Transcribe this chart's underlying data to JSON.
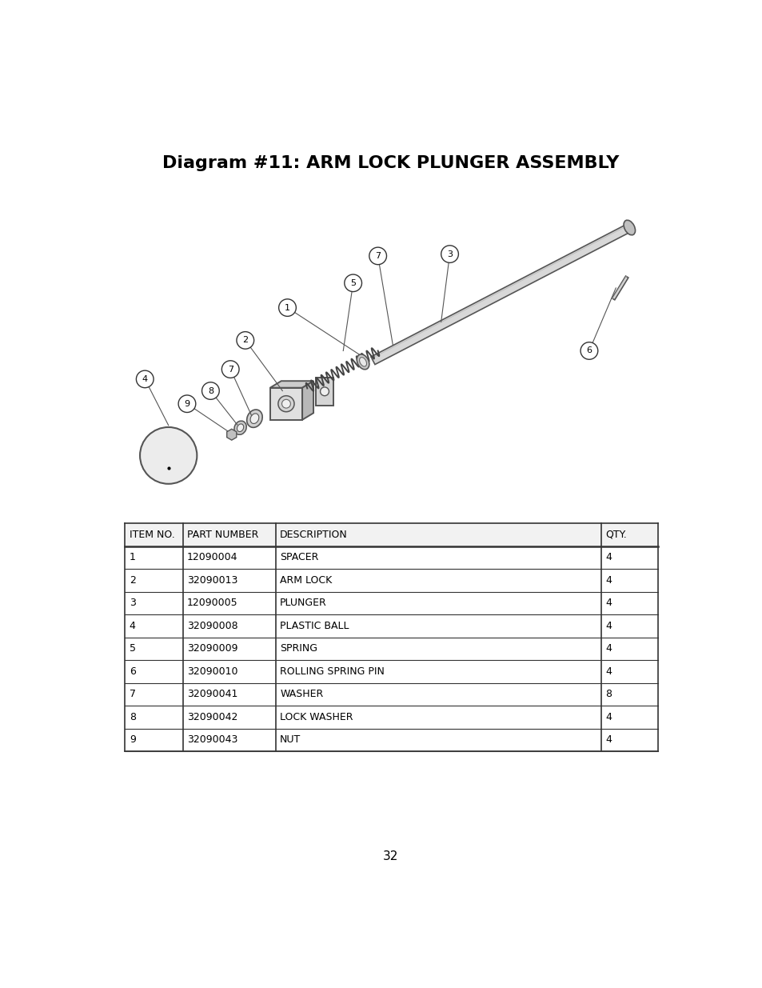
{
  "title": "Diagram #11: ARM LOCK PLUNGER ASSEMBLY",
  "title_fontsize": 16,
  "page_number": "32",
  "background_color": "#ffffff",
  "table_headers": [
    "ITEM NO.",
    "PART NUMBER",
    "DESCRIPTION",
    "QTY."
  ],
  "table_rows": [
    [
      "1",
      "12090004",
      "SPACER",
      "4"
    ],
    [
      "2",
      "32090013",
      "ARM LOCK",
      "4"
    ],
    [
      "3",
      "12090005",
      "PLUNGER",
      "4"
    ],
    [
      "4",
      "32090008",
      "PLASTIC BALL",
      "4"
    ],
    [
      "5",
      "32090009",
      "SPRING",
      "4"
    ],
    [
      "6",
      "32090010",
      "ROLLING SPRING PIN",
      "4"
    ],
    [
      "7",
      "32090041",
      "WASHER",
      "8"
    ],
    [
      "8",
      "32090042",
      "LOCK WASHER",
      "4"
    ],
    [
      "9",
      "32090043",
      "NUT",
      "4"
    ]
  ],
  "line_color": "#333333",
  "circle_color": "#ffffff",
  "circle_edge_color": "#333333"
}
